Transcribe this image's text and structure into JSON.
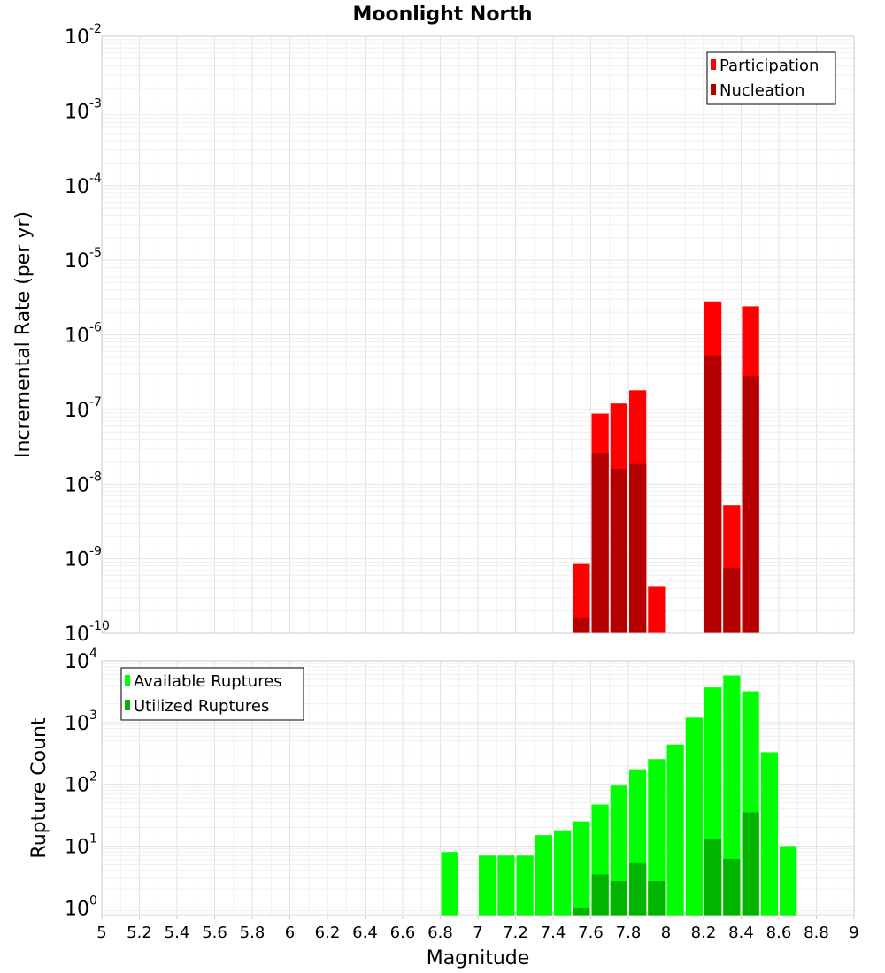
{
  "title": "Moonlight North",
  "xlabel": "Magnitude",
  "x_ticks": [
    "5",
    "5.2",
    "5.4",
    "5.6",
    "5.8",
    "6",
    "6.2",
    "6.4",
    "6.6",
    "6.8",
    "7",
    "7.2",
    "7.4",
    "7.6",
    "7.8",
    "8",
    "8.2",
    "8.4",
    "8.6",
    "8.8",
    "9"
  ],
  "chart_data": [
    {
      "type": "bar",
      "ylabel": "Incremental Rate (per yr)",
      "xlim": [
        5,
        9
      ],
      "ylim": [
        1e-10,
        0.01
      ],
      "y_scale": "log",
      "y_ticks": [
        {
          "base": "10",
          "exp": "-10"
        },
        {
          "base": "10",
          "exp": "-9"
        },
        {
          "base": "10",
          "exp": "-8"
        },
        {
          "base": "10",
          "exp": "-7"
        },
        {
          "base": "10",
          "exp": "-6"
        },
        {
          "base": "10",
          "exp": "-5"
        },
        {
          "base": "10",
          "exp": "-4"
        },
        {
          "base": "10",
          "exp": "-3"
        },
        {
          "base": "10",
          "exp": "-2"
        }
      ],
      "legend_position": "top-right",
      "grid": true,
      "x": [
        7.55,
        7.65,
        7.75,
        7.85,
        7.95,
        8.05,
        8.15,
        8.25,
        8.35,
        8.45
      ],
      "series": [
        {
          "name": "Participation",
          "color": "#ff0000",
          "values": [
            8.5e-10,
            8.8e-08,
            1.2e-07,
            1.8e-07,
            4.2e-10,
            null,
            null,
            2.8e-06,
            5.2e-09,
            2.4e-06
          ]
        },
        {
          "name": "Nucleation",
          "color": "#b40000",
          "values": [
            1.6e-10,
            2.6e-08,
            1.6e-08,
            1.9e-08,
            null,
            null,
            null,
            5.3e-07,
            7.5e-10,
            2.8e-07
          ]
        }
      ]
    },
    {
      "type": "bar",
      "ylabel": "Rupture Count",
      "xlim": [
        5,
        9
      ],
      "ylim": [
        0.75,
        10000
      ],
      "y_scale": "log",
      "y_ticks": [
        {
          "base": "10",
          "exp": "0"
        },
        {
          "base": "10",
          "exp": "1"
        },
        {
          "base": "10",
          "exp": "2"
        },
        {
          "base": "10",
          "exp": "3"
        },
        {
          "base": "10",
          "exp": "4"
        }
      ],
      "legend_position": "top-left",
      "grid": true,
      "x": [
        6.85,
        6.95,
        7.05,
        7.15,
        7.25,
        7.35,
        7.45,
        7.55,
        7.65,
        7.75,
        7.85,
        7.95,
        8.05,
        8.15,
        8.25,
        8.35,
        8.45,
        8.55,
        8.65
      ],
      "series": [
        {
          "name": "Available Ruptures",
          "color": "#00ff00",
          "values": [
            8,
            null,
            7,
            7,
            7,
            15,
            18,
            25,
            47,
            95,
            175,
            255,
            440,
            1200,
            3700,
            5800,
            3200,
            330,
            10
          ]
        },
        {
          "name": "Utilized Ruptures",
          "color": "#00b400",
          "values": [
            null,
            null,
            null,
            null,
            null,
            null,
            null,
            1,
            3.5,
            2.7,
            5.3,
            2.7,
            null,
            null,
            13,
            6.2,
            35,
            null,
            null
          ]
        }
      ]
    }
  ]
}
